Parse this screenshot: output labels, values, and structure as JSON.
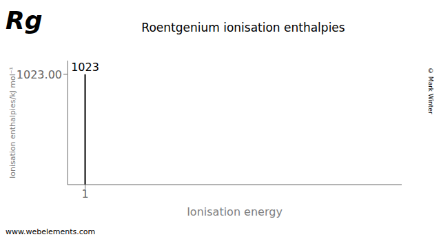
{
  "chart_data": {
    "type": "bar",
    "title": "Roentgenium ionisation enthalpies",
    "x_label": "Ionisation energy",
    "y_label": "Ionisation enthalpies/kJ mol⁻¹",
    "x": [
      1
    ],
    "values": [
      1023
    ],
    "color": "#000000",
    "data_labels": true,
    "xlim": [
      0.5,
      10
    ],
    "xticks": [
      1
    ],
    "ylim": [
      0,
      1150
    ],
    "yticks": [
      {
        "value": 1023,
        "label": "1023.00"
      }
    ],
    "annotations": [
      "Rg",
      "www.webelements.com",
      "© Mark Winter"
    ]
  }
}
